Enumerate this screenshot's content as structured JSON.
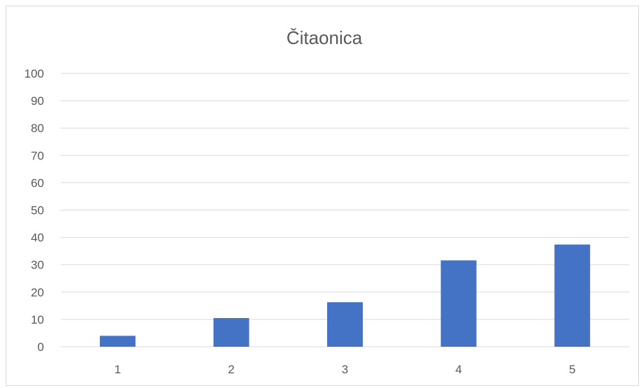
{
  "chart_data": {
    "type": "bar",
    "title": "Čitaonica",
    "xlabel": "",
    "ylabel": "",
    "categories": [
      "1",
      "2",
      "3",
      "4",
      "5"
    ],
    "values": [
      4,
      10.5,
      16.3,
      31.6,
      37.4
    ],
    "ylim": [
      0,
      100
    ],
    "yticks": [
      0,
      10,
      20,
      30,
      40,
      50,
      60,
      70,
      80,
      90,
      100
    ],
    "grid": true,
    "legend": "none",
    "colors": {
      "bar": "#4472c4",
      "grid": "#d9d9d9",
      "text": "#595959",
      "frame": "#d9d9d9"
    }
  }
}
